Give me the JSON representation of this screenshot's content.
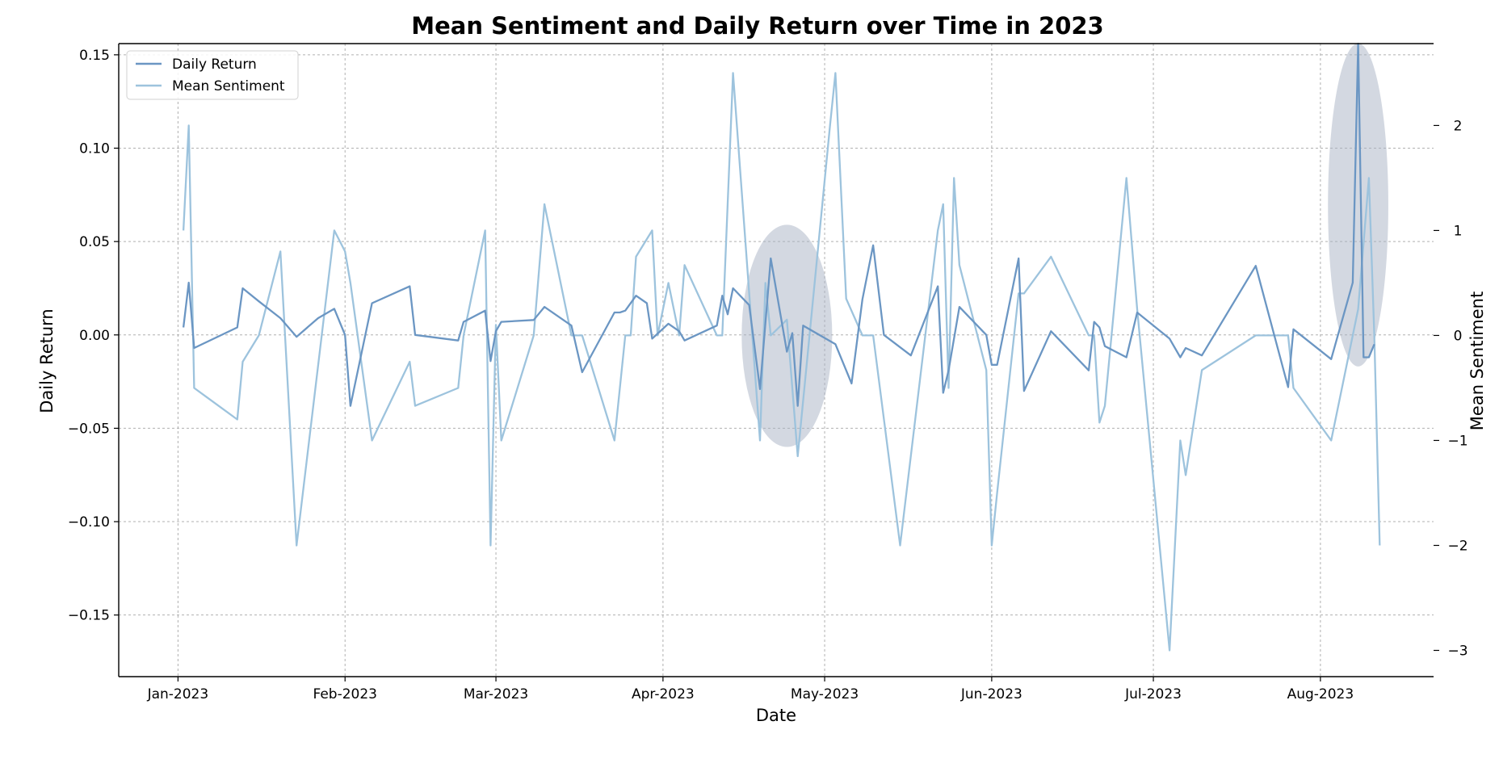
{
  "chart_data": {
    "type": "line",
    "title": "Mean Sentiment and Daily Return over Time in 2023",
    "xlabel": "Date",
    "ylabel": "Daily Return",
    "ylabel_right": "Mean Sentiment",
    "x_range": [
      "2022-12-21",
      "2023-08-22"
    ],
    "ylim": [
      -0.183,
      0.156
    ],
    "ylim_right": [
      -3.25,
      2.78
    ],
    "x_ticks": [
      {
        "date": "2023-01-01",
        "label": "Jan-2023"
      },
      {
        "date": "2023-02-01",
        "label": "Feb-2023"
      },
      {
        "date": "2023-03-01",
        "label": "Mar-2023"
      },
      {
        "date": "2023-04-01",
        "label": "Apr-2023"
      },
      {
        "date": "2023-05-01",
        "label": "May-2023"
      },
      {
        "date": "2023-06-01",
        "label": "Jun-2023"
      },
      {
        "date": "2023-07-01",
        "label": "Jul-2023"
      },
      {
        "date": "2023-08-01",
        "label": "Aug-2023"
      }
    ],
    "y_ticks": [
      {
        "value": -0.15,
        "label": "−0.15"
      },
      {
        "value": -0.1,
        "label": "−0.10"
      },
      {
        "value": -0.05,
        "label": "−0.05"
      },
      {
        "value": 0.0,
        "label": "0.00"
      },
      {
        "value": 0.05,
        "label": "0.05"
      },
      {
        "value": 0.1,
        "label": "0.10"
      },
      {
        "value": 0.15,
        "label": "0.15"
      }
    ],
    "y_ticks_right": [
      {
        "value": -3,
        "label": "−3"
      },
      {
        "value": -2,
        "label": "−2"
      },
      {
        "value": -1,
        "label": "−1"
      },
      {
        "value": 0,
        "label": "0"
      },
      {
        "value": 1,
        "label": "1"
      },
      {
        "value": 2,
        "label": "2"
      }
    ],
    "grid": true,
    "legend": "top-left",
    "series": [
      {
        "name": "Daily Return",
        "axis": "left",
        "color": "#6b96c3",
        "points": [
          [
            "2023-01-02",
            0.004
          ],
          [
            "2023-01-03",
            0.028
          ],
          [
            "2023-01-04",
            -0.007
          ],
          [
            "2023-01-12",
            0.004
          ],
          [
            "2023-01-13",
            0.025
          ],
          [
            "2023-01-16",
            0.018
          ],
          [
            "2023-01-20",
            0.009
          ],
          [
            "2023-01-23",
            -0.001
          ],
          [
            "2023-01-27",
            0.009
          ],
          [
            "2023-01-30",
            0.014
          ],
          [
            "2023-02-01",
            0.0
          ],
          [
            "2023-02-02",
            -0.038
          ],
          [
            "2023-02-06",
            0.017
          ],
          [
            "2023-02-13",
            0.026
          ],
          [
            "2023-02-14",
            0.0
          ],
          [
            "2023-02-22",
            -0.003
          ],
          [
            "2023-02-23",
            0.007
          ],
          [
            "2023-02-27",
            0.013
          ],
          [
            "2023-02-28",
            -0.014
          ],
          [
            "2023-03-01",
            0.002
          ],
          [
            "2023-03-02",
            0.007
          ],
          [
            "2023-03-08",
            0.008
          ],
          [
            "2023-03-10",
            0.015
          ],
          [
            "2023-03-15",
            0.005
          ],
          [
            "2023-03-17",
            -0.02
          ],
          [
            "2023-03-23",
            0.012
          ],
          [
            "2023-03-24",
            0.012
          ],
          [
            "2023-03-25",
            0.013
          ],
          [
            "2023-03-27",
            0.021
          ],
          [
            "2023-03-29",
            0.017
          ],
          [
            "2023-03-30",
            -0.002
          ],
          [
            "2023-04-02",
            0.006
          ],
          [
            "2023-04-04",
            0.002
          ],
          [
            "2023-04-05",
            -0.003
          ],
          [
            "2023-04-11",
            0.005
          ],
          [
            "2023-04-12",
            0.021
          ],
          [
            "2023-04-13",
            0.011
          ],
          [
            "2023-04-14",
            0.025
          ],
          [
            "2023-04-17",
            0.016
          ],
          [
            "2023-04-19",
            -0.029
          ],
          [
            "2023-04-21",
            0.041
          ],
          [
            "2023-04-24",
            -0.009
          ],
          [
            "2023-04-25",
            0.001
          ],
          [
            "2023-04-26",
            -0.038
          ],
          [
            "2023-04-27",
            0.005
          ],
          [
            "2023-05-03",
            -0.005
          ],
          [
            "2023-05-06",
            -0.026
          ],
          [
            "2023-05-08",
            0.019
          ],
          [
            "2023-05-10",
            0.048
          ],
          [
            "2023-05-12",
            0.0
          ],
          [
            "2023-05-17",
            -0.011
          ],
          [
            "2023-05-22",
            0.026
          ],
          [
            "2023-05-23",
            -0.031
          ],
          [
            "2023-05-24",
            -0.019
          ],
          [
            "2023-05-26",
            0.015
          ],
          [
            "2023-05-31",
            0.0
          ],
          [
            "2023-06-01",
            -0.016
          ],
          [
            "2023-06-02",
            -0.016
          ],
          [
            "2023-06-06",
            0.041
          ],
          [
            "2023-06-07",
            -0.03
          ],
          [
            "2023-06-12",
            0.002
          ],
          [
            "2023-06-19",
            -0.019
          ],
          [
            "2023-06-20",
            0.007
          ],
          [
            "2023-06-21",
            0.004
          ],
          [
            "2023-06-22",
            -0.006
          ],
          [
            "2023-06-26",
            -0.012
          ],
          [
            "2023-06-28",
            0.012
          ],
          [
            "2023-07-04",
            -0.002
          ],
          [
            "2023-07-06",
            -0.012
          ],
          [
            "2023-07-07",
            -0.007
          ],
          [
            "2023-07-10",
            -0.011
          ],
          [
            "2023-07-20",
            0.037
          ],
          [
            "2023-07-26",
            -0.028
          ],
          [
            "2023-07-27",
            0.003
          ],
          [
            "2023-08-03",
            -0.013
          ],
          [
            "2023-08-07",
            0.028
          ],
          [
            "2023-08-08",
            0.156
          ],
          [
            "2023-08-09",
            -0.012
          ],
          [
            "2023-08-10",
            -0.012
          ],
          [
            "2023-08-11",
            -0.005
          ]
        ]
      },
      {
        "name": "Mean Sentiment",
        "axis": "right",
        "color": "#9dc3dd",
        "points": [
          [
            "2023-01-02",
            1.0
          ],
          [
            "2023-01-03",
            2.0
          ],
          [
            "2023-01-04",
            -0.5
          ],
          [
            "2023-01-12",
            -0.8
          ],
          [
            "2023-01-13",
            -0.25
          ],
          [
            "2023-01-16",
            0.0
          ],
          [
            "2023-01-20",
            0.8
          ],
          [
            "2023-01-23",
            -2.0
          ],
          [
            "2023-01-30",
            1.0
          ],
          [
            "2023-02-01",
            0.8
          ],
          [
            "2023-02-02",
            0.5
          ],
          [
            "2023-02-06",
            -1.0
          ],
          [
            "2023-02-13",
            -0.25
          ],
          [
            "2023-02-14",
            -0.67
          ],
          [
            "2023-02-22",
            -0.5
          ],
          [
            "2023-02-23",
            0.0
          ],
          [
            "2023-02-27",
            1.0
          ],
          [
            "2023-02-28",
            -2.0
          ],
          [
            "2023-03-01",
            0.1
          ],
          [
            "2023-03-02",
            -1.0
          ],
          [
            "2023-03-08",
            0.0
          ],
          [
            "2023-03-10",
            1.25
          ],
          [
            "2023-03-15",
            0.0
          ],
          [
            "2023-03-17",
            0.0
          ],
          [
            "2023-03-23",
            -1.0
          ],
          [
            "2023-03-25",
            0.0
          ],
          [
            "2023-03-26",
            0.0
          ],
          [
            "2023-03-27",
            0.75
          ],
          [
            "2023-03-30",
            1.0
          ],
          [
            "2023-03-31",
            0.0
          ],
          [
            "2023-04-02",
            0.5
          ],
          [
            "2023-04-04",
            0.0
          ],
          [
            "2023-04-05",
            0.67
          ],
          [
            "2023-04-11",
            0.0
          ],
          [
            "2023-04-12",
            0.0
          ],
          [
            "2023-04-14",
            2.5
          ],
          [
            "2023-04-19",
            -1.0
          ],
          [
            "2023-04-20",
            0.5
          ],
          [
            "2023-04-21",
            0.0
          ],
          [
            "2023-04-24",
            0.15
          ],
          [
            "2023-04-26",
            -1.15
          ],
          [
            "2023-05-02",
            2.0
          ],
          [
            "2023-05-03",
            2.5
          ],
          [
            "2023-05-05",
            0.35
          ],
          [
            "2023-05-08",
            0.0
          ],
          [
            "2023-05-10",
            0.0
          ],
          [
            "2023-05-15",
            -2.0
          ],
          [
            "2023-05-22",
            1.0
          ],
          [
            "2023-05-23",
            1.25
          ],
          [
            "2023-05-24",
            -0.5
          ],
          [
            "2023-05-25",
            1.5
          ],
          [
            "2023-05-26",
            0.67
          ],
          [
            "2023-05-31",
            -0.33
          ],
          [
            "2023-06-01",
            -2.0
          ],
          [
            "2023-06-02",
            -1.5
          ],
          [
            "2023-06-06",
            0.4
          ],
          [
            "2023-06-07",
            0.4
          ],
          [
            "2023-06-12",
            0.75
          ],
          [
            "2023-06-19",
            0.0
          ],
          [
            "2023-06-20",
            0.0
          ],
          [
            "2023-06-21",
            -0.83
          ],
          [
            "2023-06-22",
            -0.67
          ],
          [
            "2023-06-26",
            1.5
          ],
          [
            "2023-06-28",
            0.25
          ],
          [
            "2023-07-04",
            -3.0
          ],
          [
            "2023-07-06",
            -1.0
          ],
          [
            "2023-07-07",
            -1.33
          ],
          [
            "2023-07-10",
            -0.33
          ],
          [
            "2023-07-20",
            0.0
          ],
          [
            "2023-07-26",
            0.0
          ],
          [
            "2023-07-27",
            -0.5
          ],
          [
            "2023-08-03",
            -1.0
          ],
          [
            "2023-08-08",
            0.25
          ],
          [
            "2023-08-10",
            1.5
          ],
          [
            "2023-08-11",
            0.0
          ],
          [
            "2023-08-12",
            -2.0
          ]
        ]
      }
    ],
    "highlights": [
      {
        "center_date": "2023-04-24",
        "center_value": -0.0005,
        "half_days": 8.4,
        "half_value": 0.0595,
        "color": "#a8b1c4"
      },
      {
        "center_date": "2023-08-08",
        "center_value": 0.0696,
        "half_days": 5.6,
        "half_value": 0.0865,
        "color": "#a8b1c4"
      }
    ]
  }
}
